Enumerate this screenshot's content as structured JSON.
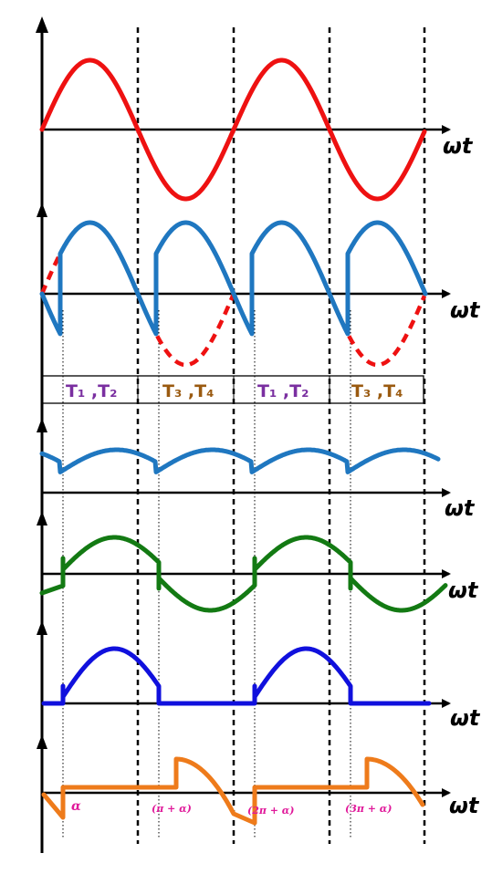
{
  "axis_label": "ωt",
  "colors": {
    "input": "#ee1111",
    "output": "#1f77c0",
    "green": "#137a13",
    "blue": "#1010dd",
    "orange": "#ee7b1b",
    "thy_a": "#7a2fa0",
    "thy_b": "#9a5a10",
    "angle": "#e0199a"
  },
  "thyristor_labels": [
    {
      "text": "T₁ ,T₂",
      "color_key": "thy_a"
    },
    {
      "text": "T₃ ,T₄",
      "color_key": "thy_b"
    },
    {
      "text": "T₁ ,T₂",
      "color_key": "thy_a"
    },
    {
      "text": "T₃ ,T₄",
      "color_key": "thy_b"
    }
  ],
  "angle_labels": [
    "α",
    "(π + α)",
    "(2π + α)",
    "(3π + α)"
  ]
}
